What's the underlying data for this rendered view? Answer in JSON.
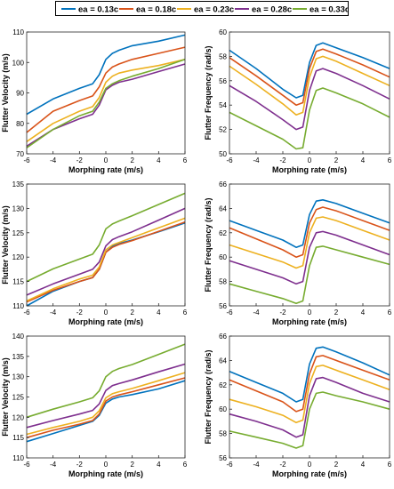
{
  "legend": [
    {
      "name": "ea = 0.13c",
      "color": "#0072BD"
    },
    {
      "name": "ea = 0.18c",
      "color": "#D95319"
    },
    {
      "name": "ea = 0.23c",
      "color": "#EDB120"
    },
    {
      "name": "ea = 0.28c",
      "color": "#7E2F8E"
    },
    {
      "name": "ea = 0.33c",
      "color": "#77AC30"
    }
  ],
  "chart_data": [
    {
      "type": "line",
      "xlabel": "Morphing rate (m/s)",
      "ylabel": "Flutter Velocity (m/s)",
      "xlim": [
        -6,
        6
      ],
      "ylim": [
        70,
        110
      ],
      "xticks": [
        -6,
        -4,
        -2,
        0,
        2,
        4,
        6
      ],
      "yticks": [
        70,
        80,
        90,
        100,
        110
      ],
      "x": [
        -6,
        -4,
        -2,
        -1,
        -0.5,
        0,
        0.5,
        1,
        2,
        4,
        6
      ],
      "series": [
        {
          "name": "ea = 0.13c",
          "values": [
            83,
            88,
            91.5,
            93,
            96,
            101,
            103,
            104,
            105.5,
            107,
            109
          ]
        },
        {
          "name": "ea = 0.18c",
          "values": [
            77,
            84,
            87.5,
            89,
            92,
            96.5,
            98.5,
            99.5,
            101,
            103,
            105
          ]
        },
        {
          "name": "ea = 0.23c",
          "values": [
            74,
            80,
            84,
            85.5,
            88.5,
            93.5,
            95.5,
            96.5,
            97.5,
            99,
            101
          ]
        },
        {
          "name": "ea = 0.28c",
          "values": [
            72.5,
            78,
            81.5,
            83,
            86,
            91,
            92.5,
            93.5,
            94.5,
            97,
            99.5
          ]
        },
        {
          "name": "ea = 0.33c",
          "values": [
            72,
            78,
            82.5,
            84,
            87,
            91.5,
            93,
            94,
            95.5,
            98,
            101
          ]
        }
      ]
    },
    {
      "type": "line",
      "xlabel": "Morphing rate (m/s)",
      "ylabel": "Flutter Frequency (rad/s)",
      "xlim": [
        -6,
        6
      ],
      "ylim": [
        50,
        60
      ],
      "xticks": [
        -6,
        -4,
        -2,
        0,
        2,
        4,
        6
      ],
      "yticks": [
        50,
        52,
        54,
        56,
        58,
        60
      ],
      "x": [
        -6,
        -4,
        -2,
        -1,
        -0.5,
        0,
        0.5,
        1,
        2,
        4,
        6
      ],
      "series": [
        {
          "name": "ea = 0.13c",
          "values": [
            58.5,
            57,
            55.3,
            54.6,
            54.8,
            57.5,
            58.9,
            59.1,
            58.7,
            57.9,
            57
          ]
        },
        {
          "name": "ea = 0.18c",
          "values": [
            57.9,
            56.4,
            54.8,
            54,
            54.2,
            57,
            58.4,
            58.6,
            58.2,
            57.3,
            56.3
          ]
        },
        {
          "name": "ea = 0.23c",
          "values": [
            57.2,
            55.7,
            54.1,
            53.2,
            53.4,
            56.3,
            57.8,
            58,
            57.6,
            56.6,
            55.6
          ]
        },
        {
          "name": "ea = 0.28c",
          "values": [
            55.6,
            54.3,
            52.8,
            52,
            52.2,
            55.2,
            56.8,
            57,
            56.6,
            55.6,
            54.5
          ]
        },
        {
          "name": "ea = 0.33c",
          "values": [
            53.4,
            52.3,
            51.2,
            50.4,
            50.5,
            53.6,
            55.2,
            55.4,
            55,
            54.1,
            53
          ]
        }
      ]
    },
    {
      "type": "line",
      "xlabel": "Morphing rate (m/s)",
      "ylabel": "Flutter Velocity (m/s)",
      "xlim": [
        -6,
        6
      ],
      "ylim": [
        110,
        135
      ],
      "xticks": [
        -6,
        -4,
        -2,
        0,
        2,
        4,
        6
      ],
      "yticks": [
        110,
        115,
        120,
        125,
        130,
        135
      ],
      "x": [
        -6,
        -4,
        -2,
        -1,
        -0.5,
        0,
        0.5,
        1,
        2,
        4,
        6
      ],
      "series": [
        {
          "name": "ea = 0.13c",
          "values": [
            110,
            113,
            115,
            115.8,
            117.5,
            121,
            122.2,
            122.8,
            123.5,
            125.2,
            127
          ]
        },
        {
          "name": "ea = 0.18c",
          "values": [
            110.8,
            113.2,
            115,
            115.8,
            117.5,
            121,
            122,
            122.6,
            123.4,
            125.3,
            127.2
          ]
        },
        {
          "name": "ea = 0.23c",
          "values": [
            111,
            113.5,
            115.5,
            116.3,
            118,
            121.5,
            122.5,
            123,
            124,
            126,
            128
          ]
        },
        {
          "name": "ea = 0.28c",
          "values": [
            112.2,
            114.5,
            116.5,
            117.5,
            119,
            122.3,
            123.6,
            124.2,
            125.2,
            127.6,
            130
          ]
        },
        {
          "name": "ea = 0.33c",
          "values": [
            115,
            117.6,
            119.6,
            120.6,
            122.5,
            125.8,
            126.8,
            127.4,
            128.5,
            130.8,
            133.1
          ]
        }
      ]
    },
    {
      "type": "line",
      "xlabel": "Morphing rate (m/s)",
      "ylabel": "Flutter Frequency (rad/s)",
      "xlim": [
        -6,
        6
      ],
      "ylim": [
        56,
        66
      ],
      "xticks": [
        -6,
        -4,
        -2,
        0,
        2,
        4,
        6
      ],
      "yticks": [
        56,
        58,
        60,
        62,
        64,
        66
      ],
      "x": [
        -6,
        -4,
        -2,
        -1,
        -0.5,
        0,
        0.5,
        1,
        2,
        4,
        6
      ],
      "series": [
        {
          "name": "ea = 0.13c",
          "values": [
            63,
            62.2,
            61.4,
            60.8,
            61,
            63.5,
            64.6,
            64.7,
            64.4,
            63.6,
            62.8
          ]
        },
        {
          "name": "ea = 0.18c",
          "values": [
            62.4,
            61.5,
            60.6,
            60,
            60.2,
            62.8,
            63.9,
            64.1,
            63.8,
            63,
            62.2
          ]
        },
        {
          "name": "ea = 0.23c",
          "values": [
            61,
            60.3,
            59.6,
            59.1,
            59.3,
            62,
            63.2,
            63.3,
            63,
            62.2,
            61.4
          ]
        },
        {
          "name": "ea = 0.28c",
          "values": [
            59.7,
            59,
            58.3,
            57.8,
            58,
            60.8,
            62,
            62.1,
            61.8,
            61,
            60.2
          ]
        },
        {
          "name": "ea = 0.33c",
          "values": [
            57.8,
            57.2,
            56.6,
            56.2,
            56.4,
            59.3,
            60.8,
            60.9,
            60.6,
            60,
            59.4
          ]
        }
      ]
    },
    {
      "type": "line",
      "xlabel": "Morphing rate (m/s)",
      "ylabel": "Flutter Velocity (m/s)",
      "xlim": [
        -6,
        6
      ],
      "ylim": [
        110,
        140
      ],
      "xticks": [
        -6,
        -4,
        -2,
        0,
        2,
        4,
        6
      ],
      "yticks": [
        110,
        115,
        120,
        125,
        130,
        135,
        140
      ],
      "x": [
        -6,
        -4,
        -2,
        -1,
        -0.5,
        0,
        0.5,
        1,
        2,
        4,
        6
      ],
      "series": [
        {
          "name": "ea = 0.13c",
          "values": [
            114,
            116,
            118,
            119,
            120.5,
            123.5,
            124.5,
            125,
            125.6,
            127,
            129
          ]
        },
        {
          "name": "ea = 0.18c",
          "values": [
            115,
            116.8,
            118.3,
            119.2,
            120.8,
            124,
            125,
            125.5,
            126.3,
            128,
            129.7
          ]
        },
        {
          "name": "ea = 0.23c",
          "values": [
            115.8,
            117.5,
            119,
            120,
            121.6,
            124.8,
            125.8,
            126.3,
            127.1,
            129,
            131
          ]
        },
        {
          "name": "ea = 0.28c",
          "values": [
            117.5,
            119.2,
            120.8,
            121.7,
            123.3,
            126.6,
            127.8,
            128.3,
            129.2,
            131.2,
            133.1
          ]
        },
        {
          "name": "ea = 0.33c",
          "values": [
            120,
            122,
            123.8,
            124.8,
            126.5,
            130,
            131.3,
            132,
            133,
            135.5,
            138
          ]
        }
      ]
    },
    {
      "type": "line",
      "xlabel": "Morphing rate (m/s)",
      "ylabel": "Flutter Frequency (rad/s)",
      "xlim": [
        -6,
        6
      ],
      "ylim": [
        56,
        66
      ],
      "xticks": [
        -6,
        -4,
        -2,
        0,
        2,
        4,
        6
      ],
      "yticks": [
        56,
        58,
        60,
        62,
        64,
        66
      ],
      "x": [
        -6,
        -4,
        -2,
        -1,
        -0.5,
        0,
        0.5,
        1,
        2,
        4,
        6
      ],
      "series": [
        {
          "name": "ea = 0.13c",
          "values": [
            63.1,
            62.2,
            61.3,
            60.6,
            60.8,
            63.7,
            65,
            65.1,
            64.7,
            63.8,
            62.8
          ]
        },
        {
          "name": "ea = 0.18c",
          "values": [
            62.4,
            61.5,
            60.6,
            59.8,
            60,
            62.9,
            64.3,
            64.4,
            64,
            63.2,
            62.4
          ]
        },
        {
          "name": "ea = 0.23c",
          "values": [
            60.8,
            60.2,
            59.5,
            58.9,
            59.1,
            62.1,
            63.5,
            63.6,
            63.2,
            62.4,
            61.6
          ]
        },
        {
          "name": "ea = 0.28c",
          "values": [
            59.6,
            59,
            58.3,
            57.7,
            57.9,
            61.1,
            62.5,
            62.6,
            62.2,
            61.3,
            60.6
          ]
        },
        {
          "name": "ea = 0.33c",
          "values": [
            58.2,
            57.7,
            57.2,
            56.8,
            57,
            60,
            61.3,
            61.4,
            61.1,
            60.6,
            60
          ]
        }
      ]
    }
  ]
}
